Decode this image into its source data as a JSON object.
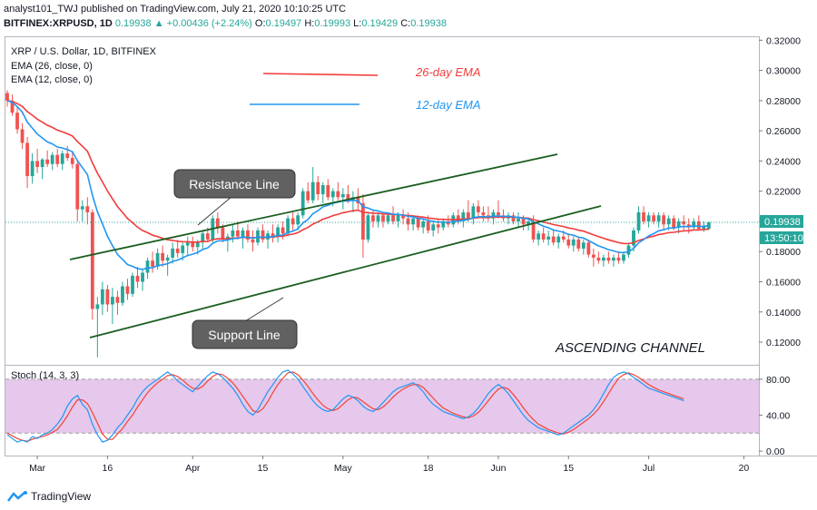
{
  "header": {
    "line1_author": "analyst101_TWJ",
    "line1_rest": "published on TradingView.com, July 21, 2020 10:10:25 UTC",
    "symbol": "BITFINEX:XRPUSD, 1D",
    "last": "0.19938",
    "change": "+0.00436 (+2.24%)",
    "o_label": "O:",
    "o": "0.19497",
    "h_label": "H:",
    "h": "0.19993",
    "l_label": "L:",
    "l": "0.19429",
    "c_label": "C:",
    "c": "0.19938"
  },
  "legend": {
    "title": "XRP / U.S. Dollar, 1D, BITFINEX",
    "ema26": "EMA (26, close, 0)",
    "ema12": "EMA (12, close, 0)",
    "stoch": "Stoch (14, 3, 3)"
  },
  "annotations": {
    "ema26_label": "26-day EMA",
    "ema12_label": "12-day EMA",
    "resistance": "Resistance Line",
    "support": "Support Line",
    "channel": "ASCENDING CHANNEL"
  },
  "price_tags": {
    "last": "0.19938",
    "countdown": "13:50:10"
  },
  "footer": {
    "brand": "TradingView"
  },
  "colors": {
    "up": "#26a69a",
    "down": "#ef5350",
    "ema26": "#f23b3b",
    "ema12": "#2196f3",
    "stoch_band": "#e1bee7",
    "stoch_k": "#2196f3",
    "stoch_d": "#f44336",
    "lines": "#1b5e20",
    "callout": "#616161"
  },
  "chart_data": [
    {
      "type": "candlestick",
      "title": "XRP / U.S. Dollar, 1D, BITFINEX",
      "ylim": [
        0.105,
        0.322
      ],
      "y_ticks": [
        0.12,
        0.14,
        0.16,
        0.18,
        0.2,
        0.22,
        0.24,
        0.26,
        0.28,
        0.3,
        0.32
      ],
      "y_tick_labels": [
        "0.12000",
        "0.14000",
        "0.16000",
        "0.18000",
        "0.20000",
        "0.22000",
        "0.24000",
        "0.26000",
        "0.28000",
        "0.30000",
        "0.32000"
      ],
      "x_tick_labels": [
        {
          "label": "Mar",
          "index": 6
        },
        {
          "label": "16",
          "index": 20
        },
        {
          "label": "Apr",
          "index": 37
        },
        {
          "label": "15",
          "index": 51
        },
        {
          "label": "May",
          "index": 67
        },
        {
          "label": "18",
          "index": 84
        },
        {
          "label": "Jun",
          "index": 98
        },
        {
          "label": "15",
          "index": 112
        },
        {
          "label": "Jul",
          "index": 128
        },
        {
          "label": "20",
          "index": 147
        }
      ],
      "last_price": 0.19938,
      "candles": [
        [
          0.285,
          0.287,
          0.276,
          0.28
        ],
        [
          0.28,
          0.284,
          0.27,
          0.272
        ],
        [
          0.272,
          0.276,
          0.258,
          0.261
        ],
        [
          0.261,
          0.265,
          0.248,
          0.252
        ],
        [
          0.252,
          0.256,
          0.222,
          0.23
        ],
        [
          0.23,
          0.245,
          0.225,
          0.24
        ],
        [
          0.24,
          0.248,
          0.232,
          0.236
        ],
        [
          0.236,
          0.242,
          0.228,
          0.241
        ],
        [
          0.241,
          0.247,
          0.236,
          0.238
        ],
        [
          0.238,
          0.246,
          0.234,
          0.244
        ],
        [
          0.244,
          0.248,
          0.236,
          0.238
        ],
        [
          0.238,
          0.247,
          0.234,
          0.245
        ],
        [
          0.245,
          0.25,
          0.24,
          0.242
        ],
        [
          0.242,
          0.246,
          0.235,
          0.238
        ],
        [
          0.238,
          0.24,
          0.2,
          0.208
        ],
        [
          0.208,
          0.214,
          0.2,
          0.21
        ],
        [
          0.21,
          0.216,
          0.198,
          0.206
        ],
        [
          0.206,
          0.208,
          0.135,
          0.142
        ],
        [
          0.142,
          0.15,
          0.11,
          0.145
        ],
        [
          0.145,
          0.16,
          0.138,
          0.155
        ],
        [
          0.155,
          0.158,
          0.14,
          0.145
        ],
        [
          0.145,
          0.156,
          0.132,
          0.15
        ],
        [
          0.15,
          0.154,
          0.138,
          0.146
        ],
        [
          0.146,
          0.16,
          0.144,
          0.157
        ],
        [
          0.157,
          0.162,
          0.148,
          0.152
        ],
        [
          0.152,
          0.166,
          0.15,
          0.164
        ],
        [
          0.164,
          0.17,
          0.156,
          0.16
        ],
        [
          0.16,
          0.168,
          0.154,
          0.166
        ],
        [
          0.166,
          0.176,
          0.162,
          0.174
        ],
        [
          0.174,
          0.18,
          0.166,
          0.17
        ],
        [
          0.17,
          0.182,
          0.168,
          0.179
        ],
        [
          0.179,
          0.184,
          0.17,
          0.174
        ],
        [
          0.174,
          0.178,
          0.164,
          0.176
        ],
        [
          0.176,
          0.186,
          0.172,
          0.182
        ],
        [
          0.182,
          0.188,
          0.176,
          0.179
        ],
        [
          0.179,
          0.186,
          0.174,
          0.184
        ],
        [
          0.184,
          0.19,
          0.178,
          0.186
        ],
        [
          0.186,
          0.19,
          0.18,
          0.183
        ],
        [
          0.183,
          0.188,
          0.178,
          0.186
        ],
        [
          0.186,
          0.194,
          0.182,
          0.192
        ],
        [
          0.192,
          0.196,
          0.186,
          0.188
        ],
        [
          0.188,
          0.204,
          0.186,
          0.202
        ],
        [
          0.202,
          0.206,
          0.192,
          0.196
        ],
        [
          0.196,
          0.198,
          0.186,
          0.188
        ],
        [
          0.188,
          0.192,
          0.18,
          0.19
        ],
        [
          0.19,
          0.198,
          0.186,
          0.194
        ],
        [
          0.194,
          0.2,
          0.188,
          0.19
        ],
        [
          0.19,
          0.196,
          0.182,
          0.194
        ],
        [
          0.194,
          0.198,
          0.186,
          0.188
        ],
        [
          0.188,
          0.194,
          0.18,
          0.186
        ],
        [
          0.186,
          0.196,
          0.184,
          0.194
        ],
        [
          0.194,
          0.198,
          0.186,
          0.188
        ],
        [
          0.188,
          0.194,
          0.182,
          0.192
        ],
        [
          0.192,
          0.198,
          0.186,
          0.19
        ],
        [
          0.19,
          0.198,
          0.186,
          0.196
        ],
        [
          0.196,
          0.2,
          0.188,
          0.192
        ],
        [
          0.192,
          0.204,
          0.19,
          0.202
        ],
        [
          0.202,
          0.206,
          0.194,
          0.198
        ],
        [
          0.198,
          0.206,
          0.194,
          0.204
        ],
        [
          0.204,
          0.222,
          0.202,
          0.22
        ],
        [
          0.22,
          0.226,
          0.212,
          0.214
        ],
        [
          0.214,
          0.236,
          0.212,
          0.226
        ],
        [
          0.226,
          0.23,
          0.214,
          0.218
        ],
        [
          0.218,
          0.226,
          0.212,
          0.224
        ],
        [
          0.224,
          0.228,
          0.214,
          0.216
        ],
        [
          0.216,
          0.222,
          0.21,
          0.22
        ],
        [
          0.22,
          0.226,
          0.214,
          0.216
        ],
        [
          0.216,
          0.222,
          0.208,
          0.218
        ],
        [
          0.218,
          0.224,
          0.212,
          0.214
        ],
        [
          0.214,
          0.22,
          0.206,
          0.216
        ],
        [
          0.216,
          0.222,
          0.208,
          0.212
        ],
        [
          0.212,
          0.218,
          0.176,
          0.188
        ],
        [
          0.188,
          0.206,
          0.186,
          0.204
        ],
        [
          0.204,
          0.208,
          0.196,
          0.2
        ],
        [
          0.2,
          0.206,
          0.196,
          0.204
        ],
        [
          0.204,
          0.206,
          0.196,
          0.2
        ],
        [
          0.2,
          0.206,
          0.198,
          0.204
        ],
        [
          0.204,
          0.21,
          0.198,
          0.2
        ],
        [
          0.2,
          0.206,
          0.196,
          0.204
        ],
        [
          0.204,
          0.208,
          0.198,
          0.202
        ],
        [
          0.202,
          0.206,
          0.194,
          0.198
        ],
        [
          0.198,
          0.204,
          0.194,
          0.202
        ],
        [
          0.202,
          0.204,
          0.194,
          0.196
        ],
        [
          0.196,
          0.202,
          0.192,
          0.2
        ],
        [
          0.2,
          0.204,
          0.192,
          0.194
        ],
        [
          0.194,
          0.2,
          0.19,
          0.198
        ],
        [
          0.198,
          0.202,
          0.192,
          0.196
        ],
        [
          0.196,
          0.202,
          0.194,
          0.2
        ],
        [
          0.2,
          0.204,
          0.196,
          0.198
        ],
        [
          0.198,
          0.206,
          0.196,
          0.204
        ],
        [
          0.204,
          0.208,
          0.198,
          0.2
        ],
        [
          0.2,
          0.208,
          0.196,
          0.206
        ],
        [
          0.206,
          0.214,
          0.2,
          0.202
        ],
        [
          0.202,
          0.212,
          0.198,
          0.21
        ],
        [
          0.21,
          0.214,
          0.202,
          0.206
        ],
        [
          0.206,
          0.21,
          0.2,
          0.204
        ],
        [
          0.204,
          0.21,
          0.2,
          0.202
        ],
        [
          0.202,
          0.208,
          0.198,
          0.206
        ],
        [
          0.206,
          0.214,
          0.202,
          0.204
        ],
        [
          0.204,
          0.208,
          0.2,
          0.202
        ],
        [
          0.202,
          0.206,
          0.198,
          0.204
        ],
        [
          0.204,
          0.206,
          0.198,
          0.2
        ],
        [
          0.2,
          0.206,
          0.196,
          0.202
        ],
        [
          0.202,
          0.204,
          0.194,
          0.198
        ],
        [
          0.198,
          0.202,
          0.194,
          0.2
        ],
        [
          0.2,
          0.204,
          0.186,
          0.188
        ],
        [
          0.188,
          0.194,
          0.184,
          0.192
        ],
        [
          0.192,
          0.196,
          0.186,
          0.188
        ],
        [
          0.188,
          0.194,
          0.184,
          0.19
        ],
        [
          0.19,
          0.194,
          0.184,
          0.186
        ],
        [
          0.186,
          0.192,
          0.182,
          0.19
        ],
        [
          0.19,
          0.194,
          0.186,
          0.188
        ],
        [
          0.188,
          0.192,
          0.182,
          0.184
        ],
        [
          0.184,
          0.19,
          0.18,
          0.188
        ],
        [
          0.188,
          0.19,
          0.18,
          0.182
        ],
        [
          0.182,
          0.188,
          0.178,
          0.186
        ],
        [
          0.186,
          0.188,
          0.176,
          0.178
        ],
        [
          0.178,
          0.182,
          0.17,
          0.176
        ],
        [
          0.176,
          0.18,
          0.172,
          0.174
        ],
        [
          0.174,
          0.178,
          0.17,
          0.176
        ],
        [
          0.176,
          0.18,
          0.172,
          0.174
        ],
        [
          0.174,
          0.178,
          0.17,
          0.176
        ],
        [
          0.176,
          0.18,
          0.172,
          0.174
        ],
        [
          0.174,
          0.18,
          0.172,
          0.178
        ],
        [
          0.178,
          0.186,
          0.176,
          0.184
        ],
        [
          0.184,
          0.196,
          0.18,
          0.194
        ],
        [
          0.194,
          0.21,
          0.192,
          0.206
        ],
        [
          0.206,
          0.21,
          0.198,
          0.2
        ],
        [
          0.2,
          0.206,
          0.196,
          0.204
        ],
        [
          0.204,
          0.206,
          0.198,
          0.2
        ],
        [
          0.2,
          0.206,
          0.196,
          0.204
        ],
        [
          0.204,
          0.206,
          0.194,
          0.198
        ],
        [
          0.198,
          0.204,
          0.194,
          0.202
        ],
        [
          0.202,
          0.204,
          0.194,
          0.196
        ],
        [
          0.196,
          0.202,
          0.192,
          0.2
        ],
        [
          0.2,
          0.204,
          0.194,
          0.198
        ],
        [
          0.198,
          0.202,
          0.192,
          0.196
        ],
        [
          0.196,
          0.202,
          0.194,
          0.2
        ],
        [
          0.2,
          0.204,
          0.194,
          0.195
        ],
        [
          0.195,
          0.2,
          0.193,
          0.197
        ],
        [
          0.19497,
          0.19993,
          0.19429,
          0.19938
        ]
      ]
    },
    {
      "type": "line",
      "title": "Stoch (14, 3, 3)",
      "ylim": [
        -5,
        95
      ],
      "y_ticks": [
        0,
        40,
        80
      ],
      "y_tick_labels": [
        "0.00",
        "40.00",
        "80.00"
      ],
      "band": [
        20,
        80
      ],
      "series": [
        {
          "name": "%K",
          "values": [
            18,
            14,
            10,
            12,
            10,
            16,
            14,
            18,
            20,
            24,
            30,
            38,
            50,
            58,
            62,
            52,
            46,
            30,
            18,
            10,
            12,
            18,
            26,
            32,
            40,
            48,
            58,
            66,
            72,
            76,
            80,
            84,
            88,
            84,
            78,
            74,
            70,
            66,
            72,
            78,
            84,
            88,
            86,
            82,
            76,
            70,
            62,
            52,
            44,
            40,
            46,
            56,
            66,
            74,
            82,
            88,
            90,
            86,
            80,
            72,
            64,
            56,
            50,
            46,
            44,
            46,
            52,
            58,
            62,
            60,
            56,
            50,
            46,
            44,
            48,
            54,
            60,
            66,
            70,
            72,
            74,
            76,
            72,
            66,
            58,
            52,
            48,
            44,
            42,
            40,
            38,
            36,
            38,
            42,
            48,
            56,
            64,
            70,
            74,
            70,
            64,
            56,
            48,
            40,
            34,
            30,
            26,
            24,
            22,
            20,
            18,
            20,
            24,
            28,
            32,
            36,
            40,
            46,
            54,
            64,
            74,
            82,
            86,
            88,
            86,
            82,
            78,
            74,
            70,
            68,
            66,
            64,
            62,
            60,
            58,
            56
          ]
        },
        {
          "name": "%D",
          "values": [
            20,
            17,
            14,
            12,
            11,
            13,
            15,
            16,
            18,
            21,
            24,
            31,
            39,
            49,
            57,
            57,
            53,
            43,
            31,
            19,
            13,
            13,
            19,
            25,
            33,
            40,
            49,
            57,
            65,
            71,
            76,
            80,
            84,
            85,
            83,
            79,
            74,
            70,
            69,
            72,
            78,
            83,
            86,
            85,
            81,
            76,
            69,
            61,
            53,
            45,
            43,
            47,
            55,
            65,
            74,
            81,
            87,
            88,
            85,
            79,
            72,
            64,
            57,
            51,
            47,
            45,
            47,
            52,
            57,
            60,
            59,
            55,
            51,
            47,
            46,
            49,
            54,
            60,
            65,
            69,
            72,
            74,
            74,
            71,
            65,
            59,
            53,
            48,
            45,
            42,
            40,
            38,
            37,
            39,
            43,
            49,
            56,
            63,
            69,
            71,
            69,
            63,
            56,
            48,
            41,
            35,
            30,
            27,
            24,
            22,
            20,
            19,
            21,
            24,
            28,
            32,
            36,
            41,
            47,
            55,
            64,
            73,
            81,
            85,
            87,
            85,
            82,
            78,
            74,
            71,
            68,
            66,
            64,
            62,
            60,
            58
          ]
        }
      ]
    }
  ]
}
